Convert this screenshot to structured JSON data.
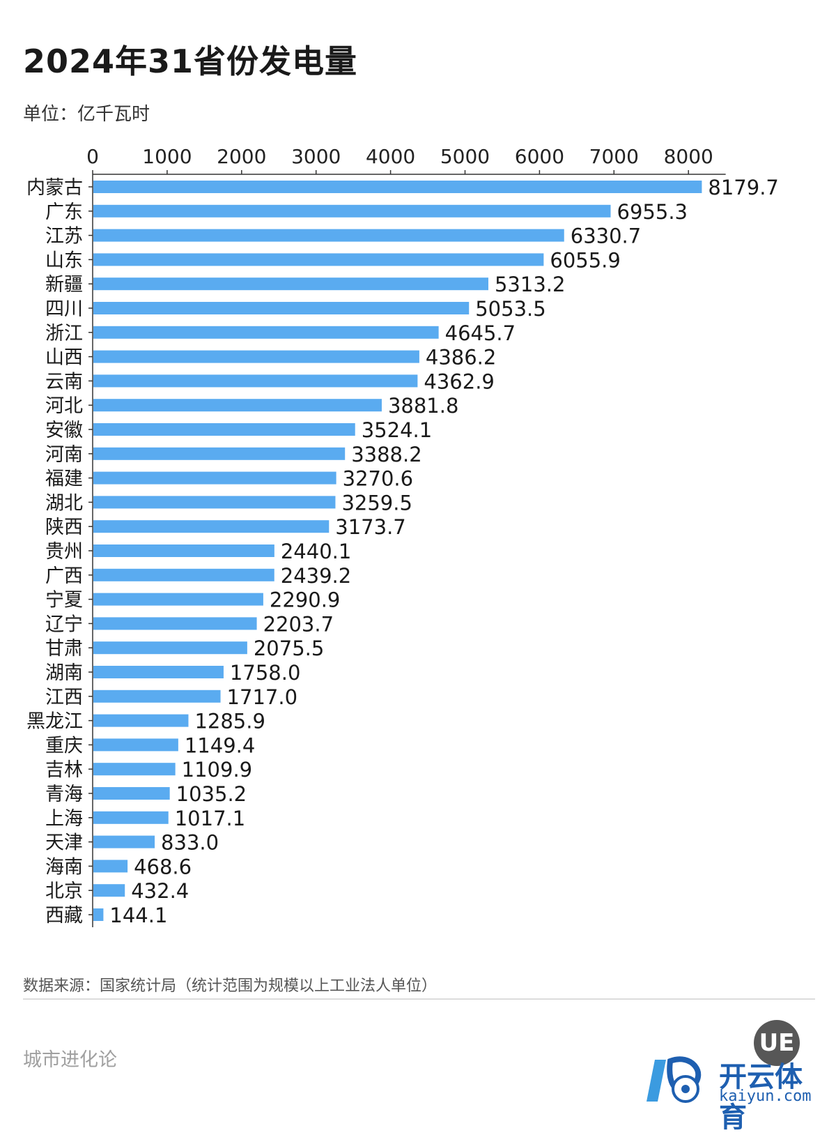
{
  "header": {
    "title": "2024年31省份发电量",
    "unit": "单位：亿千瓦时"
  },
  "footer": {
    "source": "数据来源：国家统计局（统计范围为规模以上工业法人单位）",
    "brand": "城市进化论",
    "badge_logo_text": "UE",
    "watermark_text": "开云体育",
    "watermark_url": "kaiyun.com"
  },
  "colors": {
    "bar": "#5aabf0",
    "axis": "#333333",
    "text": "#1a1a1a"
  },
  "chart_data": {
    "type": "bar",
    "orientation": "horizontal",
    "title": "2024年31省份发电量",
    "unit": "单位：亿千瓦时",
    "xlim": [
      0,
      8500
    ],
    "xticks": [
      0,
      1000,
      2000,
      3000,
      4000,
      5000,
      6000,
      7000,
      8000
    ],
    "tick_labels": [
      "0",
      "1000",
      "2000",
      "3000",
      "4000",
      "5000",
      "6000",
      "7000",
      "8000"
    ],
    "x_axis_position": "top",
    "grid": false,
    "categories": [
      "内蒙古",
      "广东",
      "江苏",
      "山东",
      "新疆",
      "四川",
      "浙江",
      "山西",
      "云南",
      "河北",
      "安徽",
      "河南",
      "福建",
      "湖北",
      "陕西",
      "贵州",
      "广西",
      "宁夏",
      "辽宁",
      "甘肃",
      "湖南",
      "江西",
      "黑龙江",
      "重庆",
      "吉林",
      "青海",
      "上海",
      "天津",
      "海南",
      "北京",
      "西藏"
    ],
    "values": [
      8179.7,
      6955.3,
      6330.7,
      6055.9,
      5313.2,
      5053.5,
      4645.7,
      4386.2,
      4362.9,
      3881.8,
      3524.1,
      3388.2,
      3270.6,
      3259.5,
      3173.7,
      2440.1,
      2439.2,
      2290.9,
      2203.7,
      2075.5,
      1758.0,
      1717.0,
      1285.9,
      1149.4,
      1109.9,
      1035.2,
      1017.1,
      833.0,
      468.6,
      432.4,
      144.1
    ],
    "value_labels": [
      "8179.7",
      "6955.3",
      "6330.7",
      "6055.9",
      "5313.2",
      "5053.5",
      "4645.7",
      "4386.2",
      "4362.9",
      "3881.8",
      "3524.1",
      "3388.2",
      "3270.6",
      "3259.5",
      "3173.7",
      "2440.1",
      "2439.2",
      "2290.9",
      "2203.7",
      "2075.5",
      "1758.0",
      "1717.0",
      "1285.9",
      "1149.4",
      "1109.9",
      "1035.2",
      "1017.1",
      "833.0",
      "468.6",
      "432.4",
      "144.1"
    ]
  }
}
